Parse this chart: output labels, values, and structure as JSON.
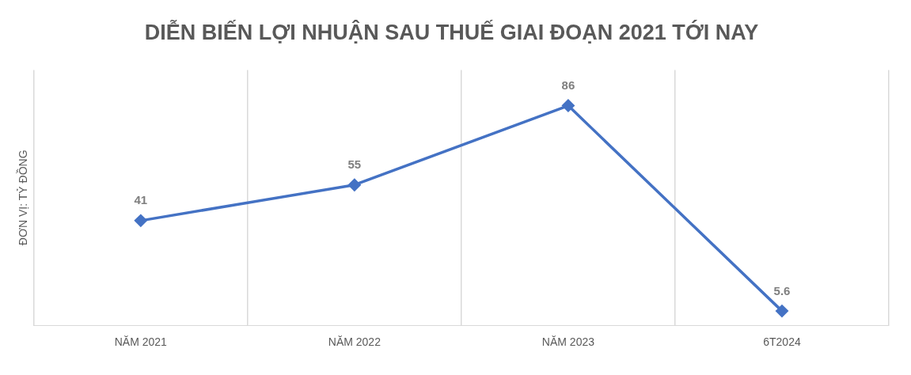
{
  "chart_data": {
    "type": "line",
    "title": "DIỄN BIẾN LỢI NHUẬN SAU THUẾ GIAI ĐOẠN 2021 TỚI NAY",
    "ylabel": "ĐƠN VỊ: TỶ ĐỒNG",
    "categories": [
      "NĂM 2021",
      "NĂM 2022",
      "NĂM 2023",
      "6T2024"
    ],
    "series": [
      {
        "color": "#4472c4",
        "values": [
          41,
          55,
          86,
          5.6
        ]
      }
    ],
    "ylim": [
      0,
      100
    ],
    "tick_labels": "x",
    "grid": "x",
    "marker": "diamond",
    "line_style": "solid",
    "data_labels": true,
    "legend": false
  }
}
